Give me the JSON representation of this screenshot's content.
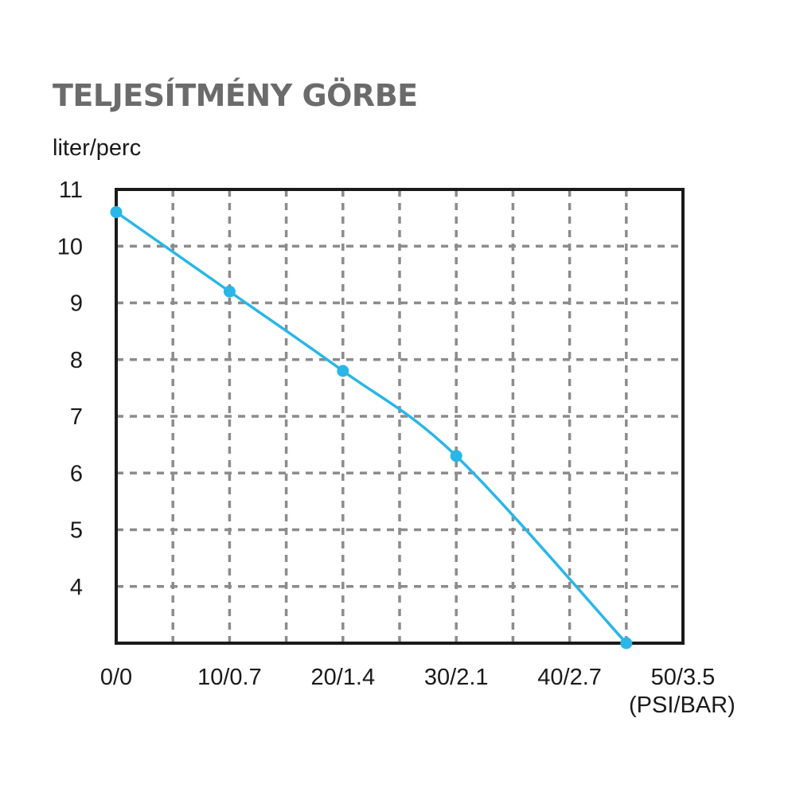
{
  "chart_data": {
    "type": "line",
    "title": "TELJESÍTMÉNY GÖRBE",
    "ylabel": "liter/perc",
    "xlabel": "(PSI/BAR)",
    "x_ticks": [
      "0/0",
      "10/0.7",
      "20/1.4",
      "30/2.1",
      "40/2.7",
      "50/3.5"
    ],
    "y_ticks": [
      11,
      10,
      9,
      8,
      7,
      6,
      5,
      4
    ],
    "xlim": [
      0,
      50
    ],
    "ylim": [
      3,
      11
    ],
    "grid": true,
    "line_color": "#29b6e8",
    "series": [
      {
        "x": [
          0,
          10,
          20,
          30,
          45
        ],
        "y": [
          10.6,
          9.2,
          7.8,
          6.3,
          3.0
        ]
      }
    ]
  }
}
